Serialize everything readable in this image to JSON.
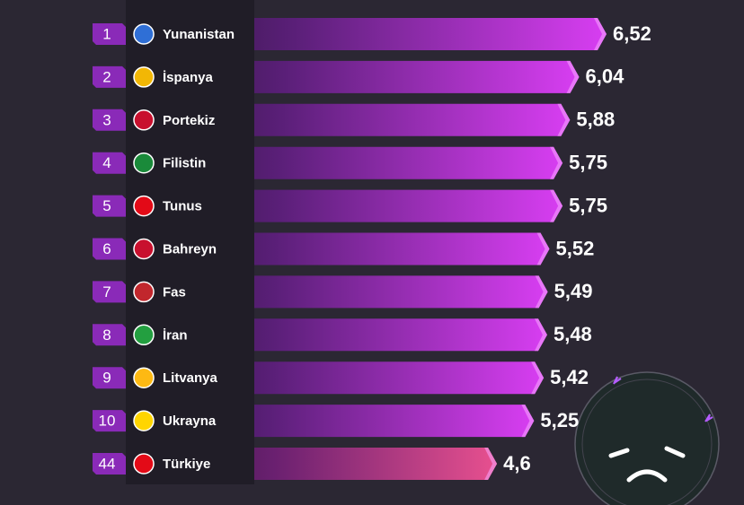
{
  "chart_data": {
    "type": "bar",
    "ranks": [
      1,
      2,
      3,
      4,
      5,
      6,
      7,
      8,
      9,
      10,
      44
    ],
    "categories": [
      "Yunanistan",
      "İspanya",
      "Portekiz",
      "Filistin",
      "Tunus",
      "Bahreyn",
      "Fas",
      "İran",
      "Litvanya",
      "Ukrayna",
      "Türkiye"
    ],
    "values": [
      6.52,
      6.04,
      5.88,
      5.75,
      5.75,
      5.52,
      5.49,
      5.48,
      5.42,
      5.25,
      4.6
    ],
    "value_labels": [
      "6,52",
      "6,04",
      "5,88",
      "5,75",
      "5,75",
      "5,52",
      "5,49",
      "5,48",
      "5,42",
      "5,25",
      "4,6"
    ],
    "color": "#d83ef2",
    "highlight_color": "#e8508f"
  }
}
